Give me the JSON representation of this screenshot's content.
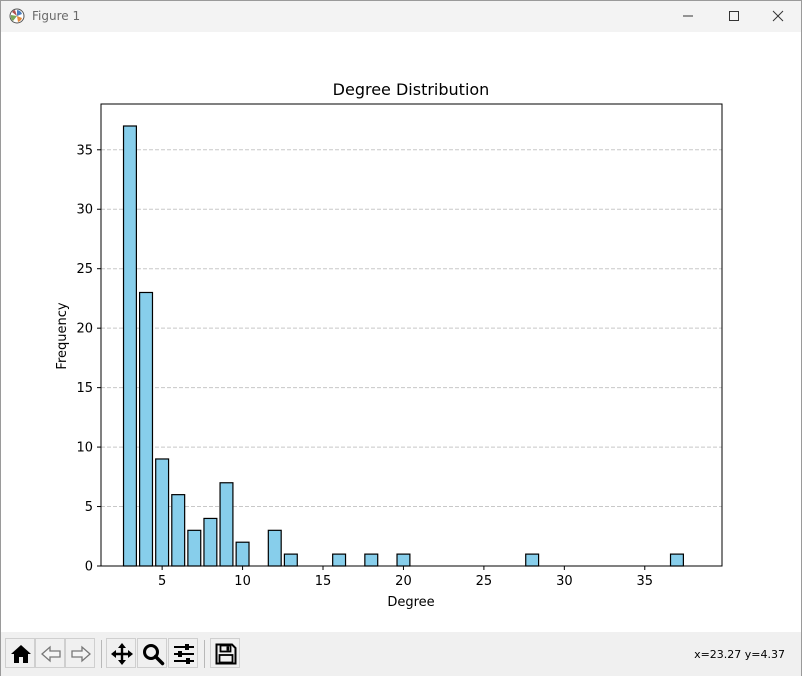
{
  "window": {
    "title": "Figure 1"
  },
  "toolbar": {
    "buttons": [
      {
        "name": "home",
        "icon": "home-icon"
      },
      {
        "name": "back",
        "icon": "arrow-left-icon"
      },
      {
        "name": "forward",
        "icon": "arrow-right-icon"
      },
      {
        "name": "pan",
        "icon": "move-icon"
      },
      {
        "name": "zoom",
        "icon": "magnifier-icon"
      },
      {
        "name": "configure-subplots",
        "icon": "sliders-icon"
      },
      {
        "name": "save",
        "icon": "floppy-disk-icon"
      }
    ],
    "coords": "x=23.27 y=4.37"
  },
  "colors": {
    "bar_fill": "#87ceeb",
    "bar_edge": "#000000",
    "grid": "#c8c8c8"
  },
  "chart_data": {
    "type": "bar",
    "title": "Degree Distribution",
    "xlabel": "Degree",
    "ylabel": "Frequency",
    "x": [
      3,
      4,
      5,
      6,
      7,
      8,
      9,
      10,
      12,
      13,
      16,
      18,
      20,
      28,
      37
    ],
    "values": [
      37,
      23,
      9,
      6,
      3,
      4,
      7,
      2,
      3,
      1,
      1,
      1,
      1,
      1,
      1
    ],
    "xlim": [
      1.2,
      39.8
    ],
    "ylim": [
      0,
      38.85
    ],
    "xticks": [
      5,
      10,
      15,
      20,
      25,
      30,
      35
    ],
    "yticks": [
      0,
      5,
      10,
      15,
      20,
      25,
      30,
      35
    ],
    "grid": "y-dashed",
    "bar_width": 0.8
  }
}
